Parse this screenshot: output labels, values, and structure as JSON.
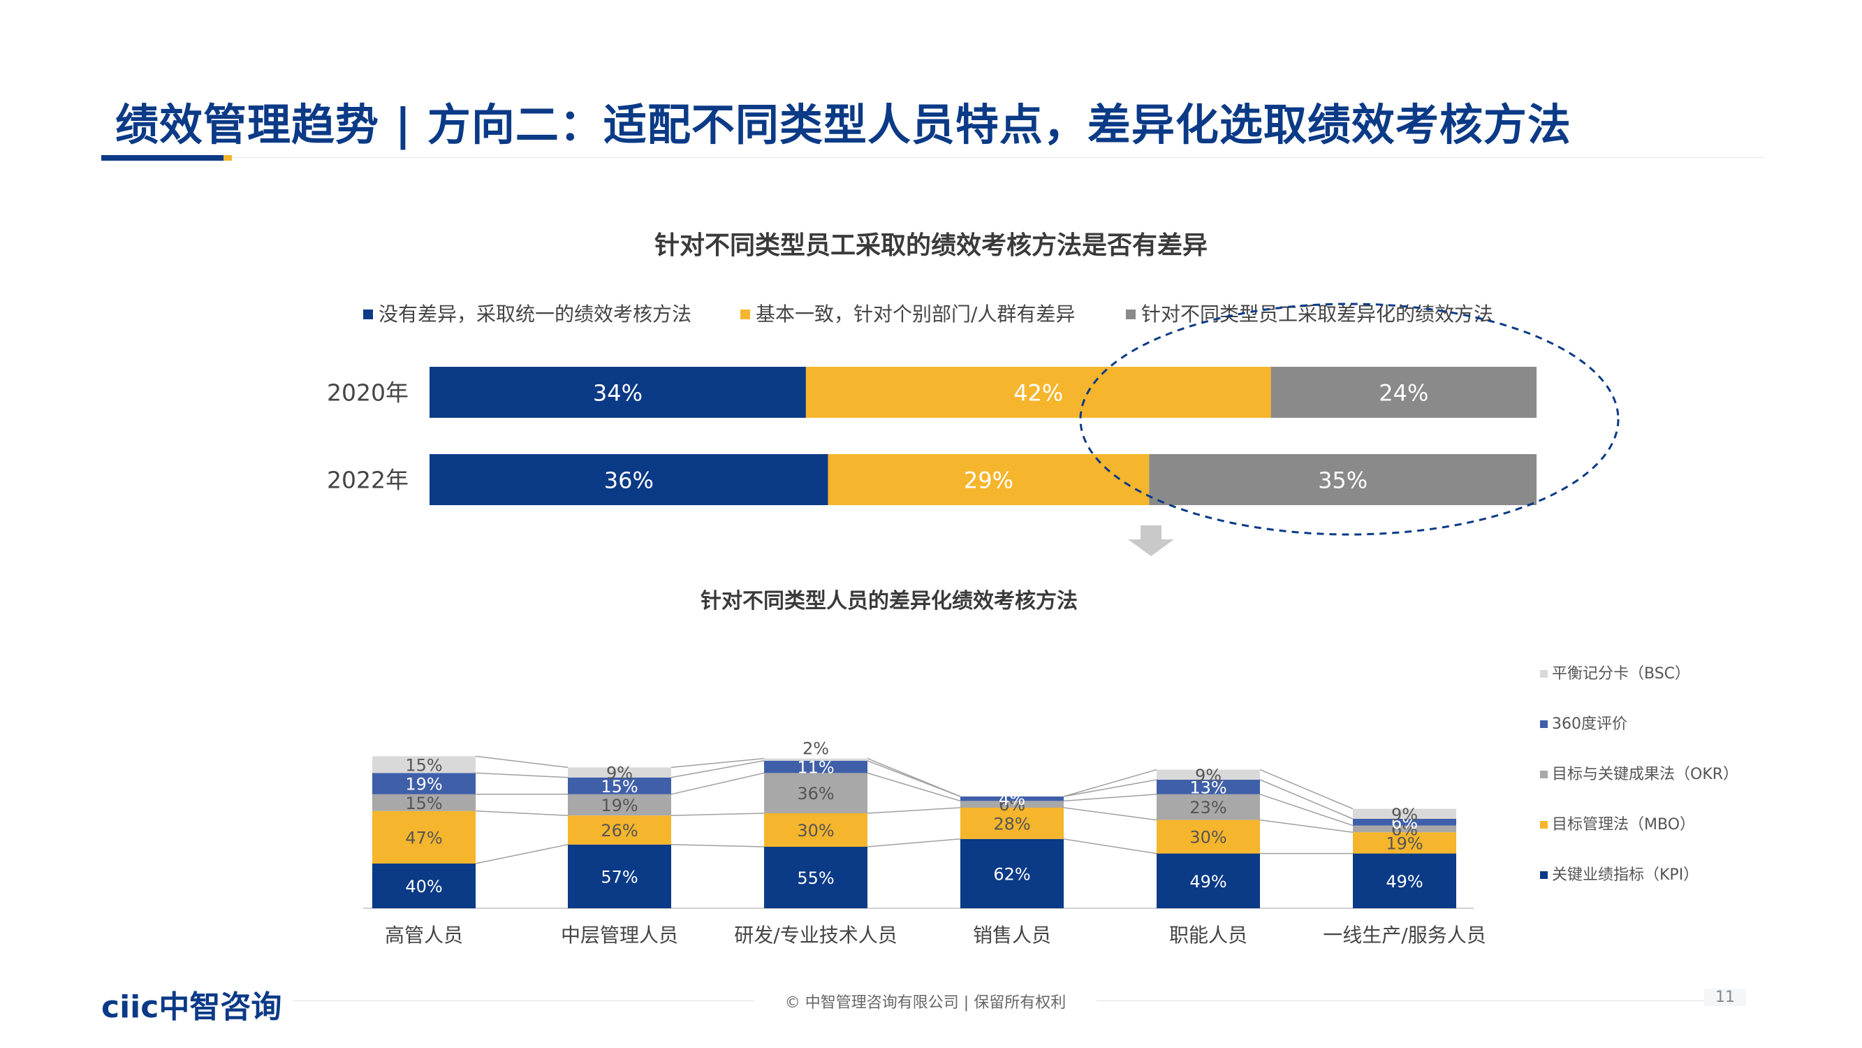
{
  "page": {
    "title": "绩效管理趋势 | 方向二：适配不同类型人员特点，差异化选取绩效考核方法",
    "brand": "ciic中智咨询",
    "copyright": "© 中智管理咨询有限公司 | 保留所有权利",
    "page_number": "11"
  },
  "colors": {
    "navy": "#0b3a86",
    "gold": "#f5b52c",
    "gray": "#8a8a8a",
    "light_gray": "#a8a8a8",
    "pale_gray": "#d9d9d9",
    "mid_blue": "#3f5fa8"
  },
  "chart_data": [
    {
      "type": "bar",
      "orientation": "horizontal",
      "stacked": true,
      "title": "针对不同类型员工采取的绩效考核方法是否有差异",
      "categories": [
        "2020年",
        "2022年"
      ],
      "series": [
        {
          "name": "没有差异，采取统一的绩效考核方法",
          "color": "#0b3a86",
          "values": [
            34,
            36
          ],
          "labels": [
            "34%",
            "36%"
          ]
        },
        {
          "name": "基本一致，针对个别部门/人群有差异",
          "color": "#f5b52c",
          "values": [
            42,
            29
          ],
          "labels": [
            "42%",
            "29%"
          ]
        },
        {
          "name": "针对不同类型员工采取差异化的绩效方法",
          "color": "#8a8a8a",
          "values": [
            24,
            35
          ],
          "labels": [
            "24%",
            "35%"
          ]
        }
      ],
      "legend_position": "top"
    },
    {
      "type": "bar",
      "stacked": true,
      "title": "针对不同类型人员的差异化绩效考核方法",
      "categories": [
        "高管人员",
        "中层管理人员",
        "研发/专业技术人员",
        "销售人员",
        "职能人员",
        "一线生产/服务人员"
      ],
      "series": [
        {
          "name": "关键业绩指标（KPI）",
          "color": "#0b3a86",
          "values": [
            40,
            57,
            55,
            62,
            49,
            49
          ],
          "labels": [
            "40%",
            "57%",
            "55%",
            "62%",
            "49%",
            "49%"
          ]
        },
        {
          "name": "目标管理法（MBO）",
          "color": "#f5b52c",
          "values": [
            47,
            26,
            30,
            28,
            30,
            19
          ],
          "labels": [
            "47%",
            "26%",
            "30%",
            "28%",
            "30%",
            "19%"
          ]
        },
        {
          "name": "目标与关键成果法（OKR）",
          "color": "#a8a8a8",
          "values": [
            15,
            19,
            36,
            6,
            23,
            6
          ],
          "labels": [
            "15%",
            "19%",
            "36%",
            "6%",
            "23%",
            "6%"
          ]
        },
        {
          "name": "360度评价",
          "color": "#3f5fa8",
          "values": [
            19,
            15,
            11,
            4,
            13,
            6
          ],
          "labels": [
            "19%",
            "15%",
            "11%",
            "4%",
            "13%",
            "6%"
          ]
        },
        {
          "name": "平衡记分卡（BSC）",
          "color": "#d9d9d9",
          "values": [
            15,
            9,
            2,
            0,
            9,
            9
          ],
          "labels": [
            "15%",
            "9%",
            "2%",
            "",
            "9%",
            "9%"
          ]
        }
      ],
      "legend_position": "right"
    }
  ]
}
